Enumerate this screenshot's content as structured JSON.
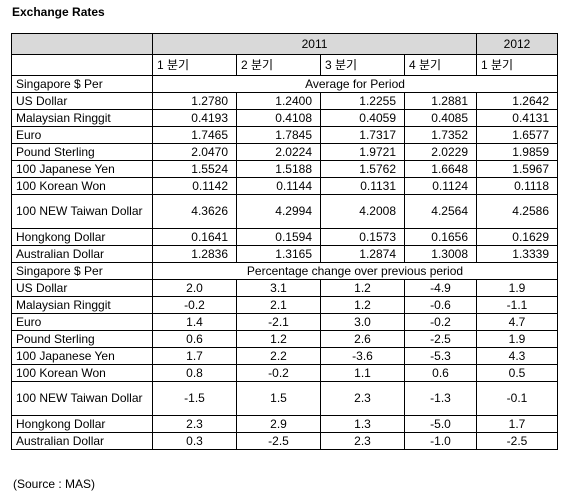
{
  "title": "Exchange Rates",
  "years": {
    "y1": "2011",
    "y2": "2012"
  },
  "quarters": [
    "1 분기",
    "2 분기",
    "3 분기",
    "4 분기",
    "1 분기"
  ],
  "section1": {
    "label": "Singapore $ Per",
    "heading": "Average for Period",
    "rows": [
      {
        "currency": "US Dollar",
        "values": [
          "1.2780",
          "1.2400",
          "1.2255",
          "1.2881",
          "1.2642"
        ]
      },
      {
        "currency": "Malaysian Ringgit",
        "values": [
          "0.4193",
          "0.4108",
          "0.4059",
          "0.4085",
          "0.4131"
        ]
      },
      {
        "currency": "Euro",
        "values": [
          "1.7465",
          "1.7845",
          "1.7317",
          "1.7352",
          "1.6577"
        ]
      },
      {
        "currency": "Pound Sterling",
        "values": [
          "2.0470",
          "2.0224",
          "1.9721",
          "2.0229",
          "1.9859"
        ]
      },
      {
        "currency": "100 Japanese Yen",
        "values": [
          "1.5524",
          "1.5188",
          "1.5762",
          "1.6648",
          "1.5967"
        ]
      },
      {
        "currency": "100 Korean Won",
        "values": [
          "0.1142",
          "0.1144",
          "0.1131",
          "0.1124",
          "0.1118"
        ]
      },
      {
        "currency": "100 NEW Taiwan Dollar",
        "values": [
          "4.3626",
          "4.2994",
          "4.2008",
          "4.2564",
          "4.2586"
        ]
      },
      {
        "currency": "Hongkong Dollar",
        "values": [
          "0.1641",
          "0.1594",
          "0.1573",
          "0.1656",
          "0.1629"
        ]
      },
      {
        "currency": "Australian Dollar",
        "values": [
          "1.2836",
          "1.3165",
          "1.2874",
          "1.3008",
          "1.3339"
        ]
      }
    ]
  },
  "section2": {
    "label": "Singapore $ Per",
    "heading": "Percentage change over previous period",
    "rows": [
      {
        "currency": "US Dollar",
        "values": [
          "2.0",
          "3.1",
          "1.2",
          "-4.9",
          "1.9"
        ]
      },
      {
        "currency": "Malaysian Ringgit",
        "values": [
          "-0.2",
          "2.1",
          "1.2",
          "-0.6",
          "-1.1"
        ]
      },
      {
        "currency": "Euro",
        "values": [
          "1.4",
          "-2.1",
          "3.0",
          "-0.2",
          "4.7"
        ]
      },
      {
        "currency": "Pound Sterling",
        "values": [
          "0.6",
          "1.2",
          "2.6",
          "-2.5",
          "1.9"
        ]
      },
      {
        "currency": "100 Japanese Yen",
        "values": [
          "1.7",
          "2.2",
          "-3.6",
          "-5.3",
          "4.3"
        ]
      },
      {
        "currency": "100 Korean Won",
        "values": [
          "0.8",
          "-0.2",
          "1.1",
          "0.6",
          "0.5"
        ]
      },
      {
        "currency": "100 NEW Taiwan Dollar",
        "values": [
          "-1.5",
          "1.5",
          "2.3",
          "-1.3",
          "-0.1"
        ]
      },
      {
        "currency": "Hongkong Dollar",
        "values": [
          "2.3",
          "2.9",
          "1.3",
          "-5.0",
          "1.7"
        ]
      },
      {
        "currency": "Australian Dollar",
        "values": [
          "0.3",
          "-2.5",
          "2.3",
          "-1.0",
          "-2.5"
        ]
      }
    ]
  },
  "source": "(Source : MAS)"
}
